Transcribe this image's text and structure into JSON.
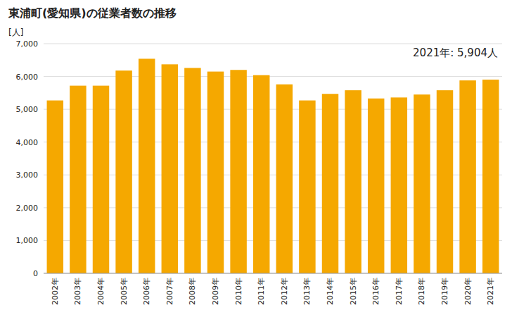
{
  "chart_data": {
    "type": "bar",
    "title": "東浦町(愛知県)の従業者数の推移",
    "y_label": "[人]",
    "annotation": "2021年: 5,904人",
    "categories": [
      "2002年",
      "2003年",
      "2004年",
      "2005年",
      "2006年",
      "2007年",
      "2008年",
      "2009年",
      "2010年",
      "2011年",
      "2012年",
      "2013年",
      "2014年",
      "2015年",
      "2016年",
      "2017年",
      "2018年",
      "2019年",
      "2020年",
      "2021年"
    ],
    "values": [
      5270,
      5720,
      5720,
      6180,
      6540,
      6370,
      6260,
      6150,
      6200,
      6040,
      5760,
      5270,
      5470,
      5580,
      5330,
      5360,
      5450,
      5580,
      5880,
      5904
    ],
    "color": "#F5A800",
    "ylim": [
      0,
      7000
    ],
    "yticks": [
      0,
      {
        "value": 1000,
        "label": "1,000"
      },
      {
        "value": 2000,
        "label": "2,000"
      },
      {
        "value": 3000,
        "label": "3,000"
      },
      {
        "value": 4000,
        "label": "4,000"
      },
      {
        "value": 5000,
        "label": "5,000"
      },
      {
        "value": 6000,
        "label": "6,000"
      },
      {
        "value": 7000,
        "label": "7,000"
      }
    ],
    "grid": true
  }
}
